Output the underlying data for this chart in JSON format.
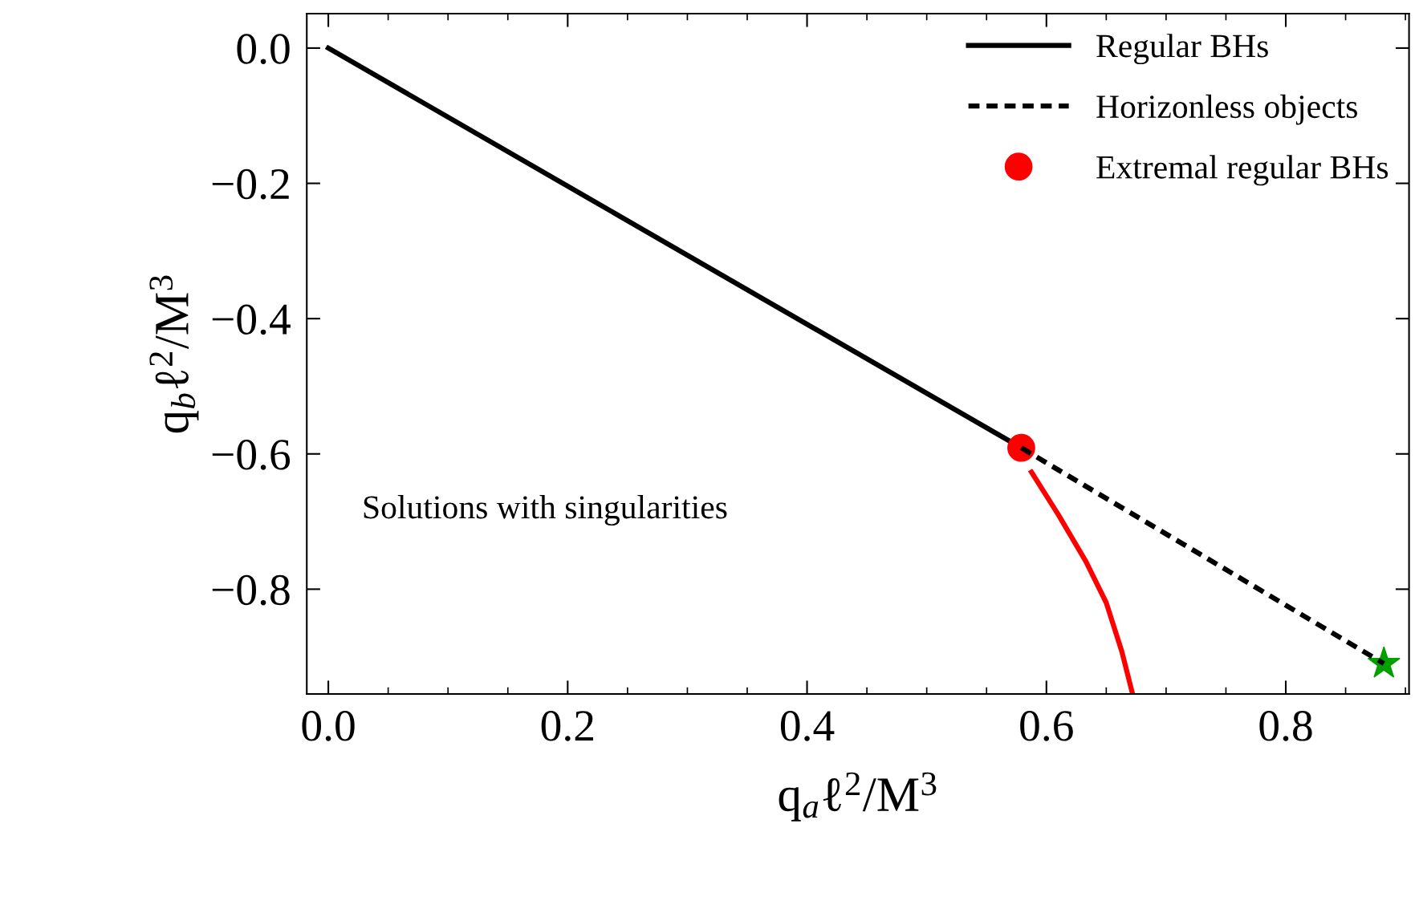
{
  "chart_data": {
    "type": "line",
    "xlabel": "q$_{a}$ℓ$^{2}$/M$^{3}$",
    "ylabel": "q$_{b}$ℓ$^{2}$/M$^{3}$",
    "xlim": [
      -0.018,
      0.903
    ],
    "ylim": [
      -0.955,
      0.051
    ],
    "xticks": [
      {
        "value": 0.0,
        "label": "0.0"
      },
      0.2,
      0.4,
      0.6,
      0.8
    ],
    "yticks": [
      {
        "value": 0.0,
        "label": "0.0"
      },
      {
        "value": -0.2,
        "label": "−0.2"
      },
      {
        "value": -0.4,
        "label": "−0.4"
      },
      {
        "value": -0.6,
        "label": "−0.6"
      },
      {
        "value": -0.8,
        "label": "−0.8"
      }
    ],
    "grid": false,
    "legend": "top right",
    "annotations": [
      "Solutions with singularities"
    ],
    "series": [
      {
        "name": "Regular BHs",
        "line_style": "solid",
        "color": "#000000",
        "x": [
          0.0,
          0.579
        ],
        "values": [
          0.0,
          -0.591
        ]
      },
      {
        "name": "Horizonless objects",
        "line_style": "dashed",
        "color": "#000000",
        "x": [
          0.579,
          0.882
        ],
        "values": [
          -0.591,
          -0.91
        ]
      },
      {
        "name": "Extremal regular BHs",
        "type": "scatter",
        "marker": "circle",
        "color": "#ff0000",
        "x": [
          0.579
        ],
        "values": [
          -0.591
        ]
      },
      {
        "line_style": "solid",
        "color": "#ff0000",
        "x": [
          0.5875,
          0.61,
          0.633,
          0.65,
          0.663,
          0.672
        ],
        "values": [
          -0.627,
          -0.69,
          -0.759,
          -0.82,
          -0.892,
          -0.955
        ]
      },
      {
        "type": "scatter",
        "marker": "star",
        "color": "#00a000",
        "x": [
          0.882
        ],
        "values": [
          -0.91
        ]
      }
    ]
  }
}
